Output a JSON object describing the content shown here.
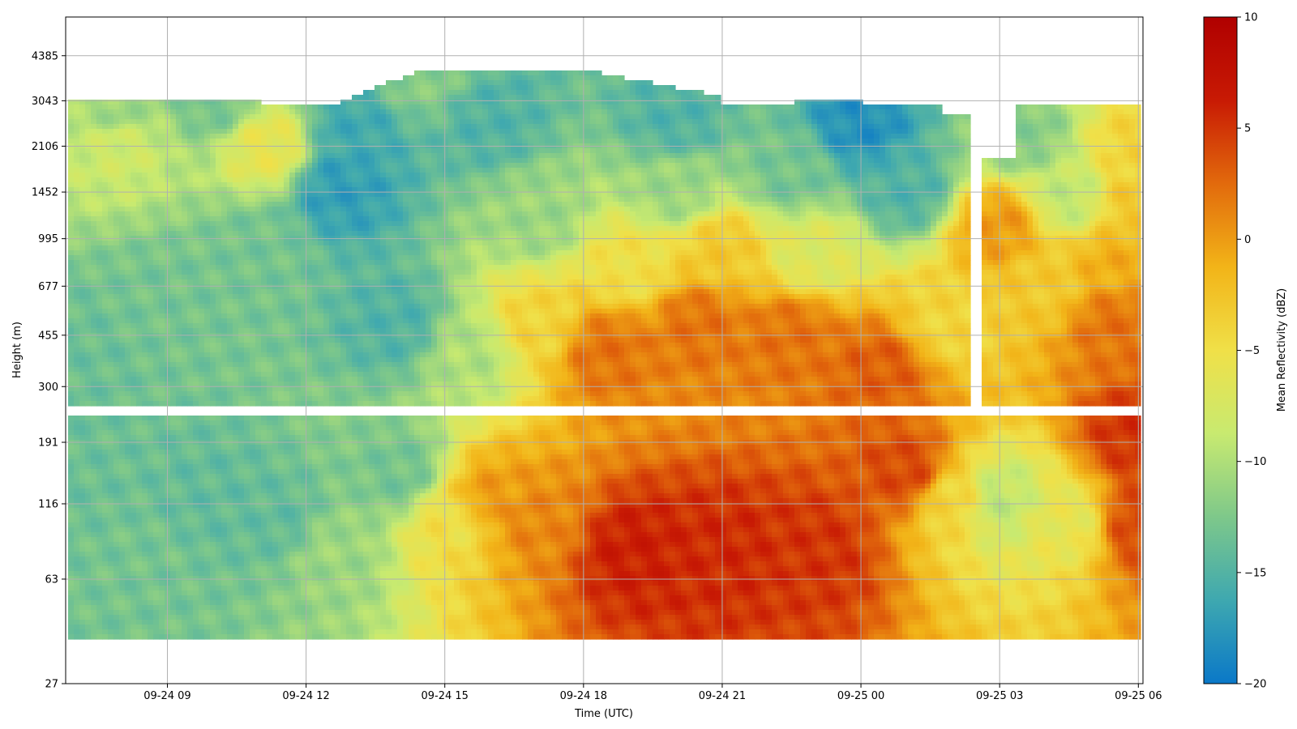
{
  "chart_data": {
    "type": "heatmap",
    "xlabel": "Time (UTC)",
    "ylabel": "Height (m)",
    "x_ticks": [
      "09-24 09",
      "09-24 12",
      "09-24 15",
      "09-24 18",
      "09-24 21",
      "09-25 00",
      "09-25 03",
      "09-25 06"
    ],
    "y_ticks": [
      "27",
      "63",
      "116",
      "191",
      "300",
      "455",
      "677",
      "995",
      "1452",
      "2106",
      "3043",
      "4385"
    ],
    "y_scale": "log",
    "x_range_hours": [
      6.8,
      30.1
    ],
    "y_range_m": [
      27,
      6000
    ],
    "colorbar": {
      "label": "Mean Reflectivity (dBZ)",
      "min": -20,
      "max": 10,
      "ticks": [
        "10",
        "5",
        "0",
        "−5",
        "−10",
        "−15",
        "−20"
      ],
      "colormap": [
        "#0a78c8",
        "#3ea8b0",
        "#7ec88a",
        "#c8ea70",
        "#f0e048",
        "#f2b418",
        "#e26a0c",
        "#c81a04",
        "#b00000"
      ]
    },
    "grid": true,
    "gaps": {
      "height_band_m": [
        235,
        260
      ],
      "time_gap_h": [
        26.4,
        26.6
      ],
      "time_gap_top_h": [
        26.4,
        27.4
      ],
      "data_bottom_m": 38
    },
    "regions": [
      {
        "t": 7.0,
        "h": 150,
        "v": -13.5
      },
      {
        "t": 8.5,
        "h": 70,
        "v": -13
      },
      {
        "t": 10.0,
        "h": 120,
        "v": -14
      },
      {
        "t": 11.5,
        "h": 100,
        "v": -14
      },
      {
        "t": 12.5,
        "h": 80,
        "v": -11
      },
      {
        "t": 14.0,
        "h": 150,
        "v": -13
      },
      {
        "t": 15.2,
        "h": 100,
        "v": -5
      },
      {
        "t": 16.0,
        "h": 120,
        "v": 0
      },
      {
        "t": 17.0,
        "h": 100,
        "v": 1
      },
      {
        "t": 19.0,
        "h": 80,
        "v": 6
      },
      {
        "t": 21.0,
        "h": 80,
        "v": 5.5
      },
      {
        "t": 23.0,
        "h": 80,
        "v": 5
      },
      {
        "t": 25.0,
        "h": 150,
        "v": 4
      },
      {
        "t": 26.0,
        "h": 120,
        "v": -4
      },
      {
        "t": 27.0,
        "h": 120,
        "v": -9
      },
      {
        "t": 28.5,
        "h": 100,
        "v": -6
      },
      {
        "t": 30.0,
        "h": 100,
        "v": 4
      },
      {
        "t": 30.0,
        "h": 200,
        "v": 5
      },
      {
        "t": 7.0,
        "h": 400,
        "v": -13.5
      },
      {
        "t": 9.0,
        "h": 600,
        "v": -13
      },
      {
        "t": 11.0,
        "h": 900,
        "v": -13
      },
      {
        "t": 12.7,
        "h": 1500,
        "v": -17
      },
      {
        "t": 14.0,
        "h": 500,
        "v": -15
      },
      {
        "t": 15.5,
        "h": 400,
        "v": -10
      },
      {
        "t": 17.0,
        "h": 500,
        "v": -4
      },
      {
        "t": 18.5,
        "h": 400,
        "v": 2
      },
      {
        "t": 20.5,
        "h": 500,
        "v": 2
      },
      {
        "t": 22.5,
        "h": 450,
        "v": 2
      },
      {
        "t": 24.5,
        "h": 350,
        "v": 3
      },
      {
        "t": 25.8,
        "h": 500,
        "v": -4
      },
      {
        "t": 19.0,
        "h": 800,
        "v": -5
      },
      {
        "t": 21.0,
        "h": 900,
        "v": -3
      },
      {
        "t": 23.0,
        "h": 900,
        "v": -7
      },
      {
        "t": 17.0,
        "h": 1200,
        "v": -11
      },
      {
        "t": 20.0,
        "h": 1500,
        "v": -11
      },
      {
        "t": 22.5,
        "h": 1700,
        "v": -13
      },
      {
        "t": 25.0,
        "h": 1500,
        "v": -15
      },
      {
        "t": 24.0,
        "h": 2500,
        "v": -18
      },
      {
        "t": 20.0,
        "h": 2600,
        "v": -15
      },
      {
        "t": 16.0,
        "h": 2600,
        "v": -15
      },
      {
        "t": 14.5,
        "h": 3800,
        "v": -12
      },
      {
        "t": 8.0,
        "h": 2200,
        "v": -8
      },
      {
        "t": 8.0,
        "h": 2700,
        "v": -11
      },
      {
        "t": 11.2,
        "h": 2100,
        "v": -6
      },
      {
        "t": 10.0,
        "h": 3100,
        "v": -13
      },
      {
        "t": 13.0,
        "h": 2400,
        "v": -16
      },
      {
        "t": 27.0,
        "h": 1100,
        "v": 0
      },
      {
        "t": 28.0,
        "h": 700,
        "v": -3
      },
      {
        "t": 29.5,
        "h": 500,
        "v": 2
      },
      {
        "t": 29.5,
        "h": 800,
        "v": -1
      },
      {
        "t": 28.5,
        "h": 1400,
        "v": -9
      },
      {
        "t": 29.9,
        "h": 1300,
        "v": -3
      },
      {
        "t": 27.5,
        "h": 2300,
        "v": -12
      },
      {
        "t": 30.0,
        "h": 2000,
        "v": -4
      }
    ]
  }
}
